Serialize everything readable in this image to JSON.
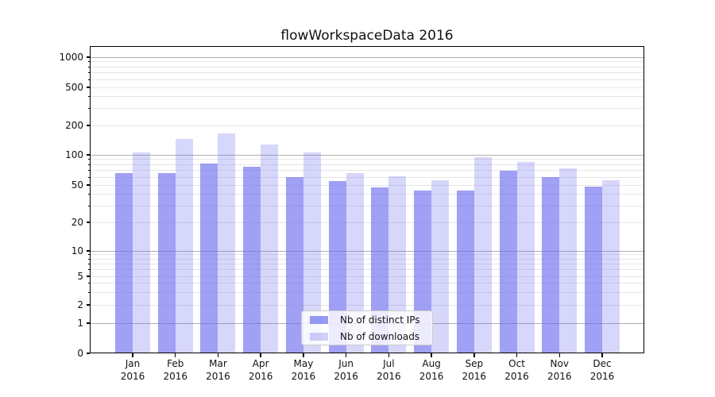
{
  "title": "flowWorkspaceData 2016",
  "chart_data": {
    "type": "bar",
    "title": "flowWorkspaceData 2016",
    "yscale": "symlog",
    "grid": true,
    "legend_position": "lower center",
    "categories": [
      "Jan",
      "Feb",
      "Mar",
      "Apr",
      "May",
      "Jun",
      "Jul",
      "Aug",
      "Sep",
      "Oct",
      "Nov",
      "Dec"
    ],
    "year": "2016",
    "y_ticks": [
      0,
      1,
      2,
      5,
      10,
      20,
      50,
      100,
      200,
      500,
      1000
    ],
    "ylim": [
      0,
      1250
    ],
    "series": [
      {
        "name": "Nb of distinct IPs",
        "base_color": "#6666ee",
        "opacity": 0.62,
        "values": [
          66,
          66,
          82,
          76,
          60,
          55,
          47,
          44,
          44,
          70,
          60,
          48
        ]
      },
      {
        "name": "Nb of downloads",
        "base_color": "#6666ee",
        "opacity": 0.26,
        "values": [
          106,
          145,
          166,
          128,
          106,
          66,
          61,
          56,
          95,
          85,
          74,
          56
        ]
      }
    ],
    "colors": {
      "grid_major": "#b0b0b0",
      "grid_minor": "#e6e6e6",
      "axis": "#000000",
      "text": "#111111"
    }
  }
}
